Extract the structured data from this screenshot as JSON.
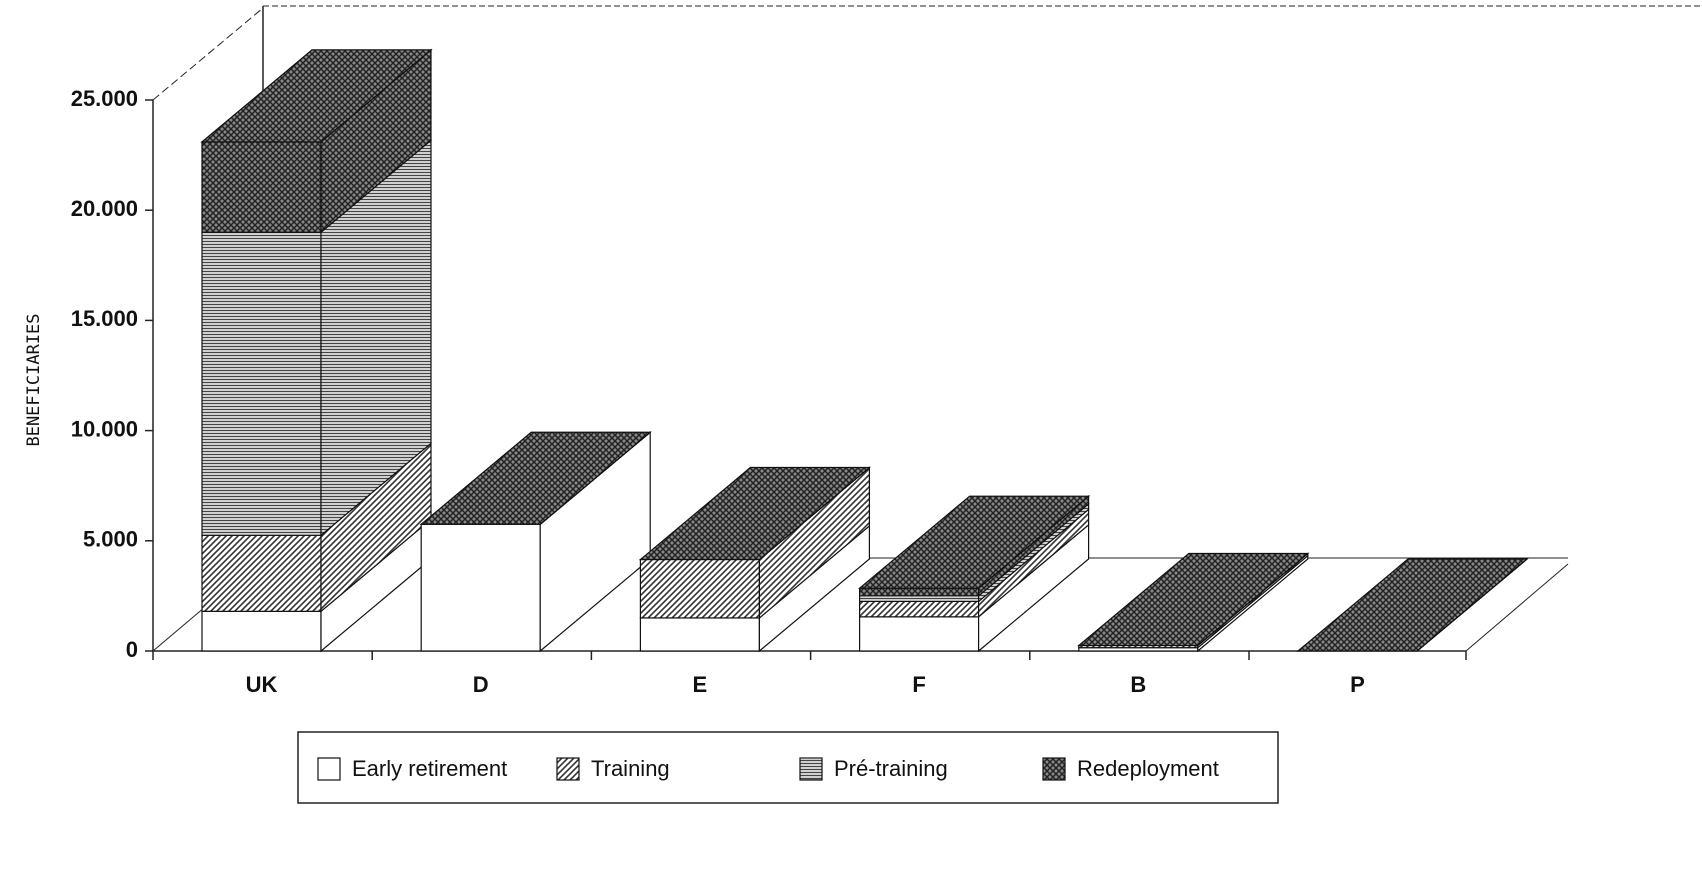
{
  "chart_data": {
    "type": "bar3d_stacked",
    "y_label": "BENEFICIARIES",
    "categories": [
      "UK",
      "D",
      "E",
      "F",
      "B",
      "P"
    ],
    "series": [
      {
        "name": "Early retirement",
        "color": "#ffffff",
        "values": [
          1800,
          5750,
          1500,
          1550,
          150,
          0
        ]
      },
      {
        "name": "Training",
        "color": "#333333",
        "values": [
          3450,
          0,
          2650,
          700,
          100,
          0
        ]
      },
      {
        "name": "Pré-training",
        "color": "#444444",
        "values": [
          13750,
          0,
          0,
          250,
          0,
          0
        ]
      },
      {
        "name": "Redeployment",
        "color": "#222222",
        "values": [
          4100,
          0,
          0,
          350,
          0,
          0
        ]
      }
    ],
    "ylim": [
      0,
      25000
    ],
    "yticks": [
      0,
      {
        "value": 5000,
        "label": "5.000"
      },
      {
        "value": 10000,
        "label": "10.000"
      },
      {
        "value": 15000,
        "label": "15.000"
      },
      {
        "value": 20000,
        "label": "20.000"
      },
      {
        "value": 25000,
        "label": "25.000"
      }
    ],
    "legend": "bottom"
  }
}
